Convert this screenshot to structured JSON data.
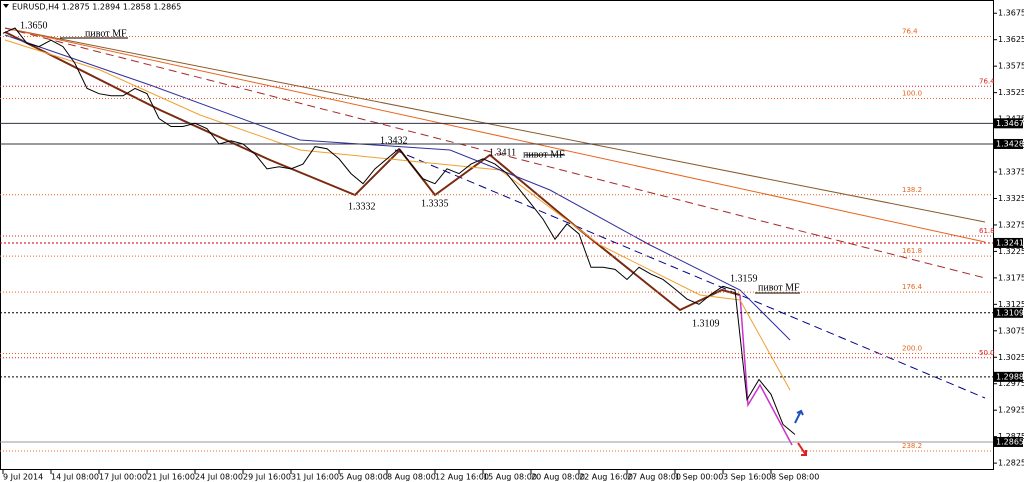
{
  "chart_data": {
    "type": "line",
    "title": "EURUSD,H4  1.2875 1.2894 1.2858 1.2865",
    "color": "#000000",
    "categories": [
      "9 Jul 2014",
      null,
      null,
      null,
      "14 Jul 08:00",
      null,
      null,
      null,
      "17 Jul 00:00",
      null,
      null,
      null,
      "21 Jul 16:00",
      null,
      null,
      null,
      "24 Jul 08:00",
      null,
      null,
      null,
      "29 Jul 16:00",
      null,
      null,
      null,
      "31 Jul 16:00",
      null,
      null,
      null,
      "5 Aug 08:00",
      null,
      null,
      null,
      "8 Aug 08:00",
      null,
      null,
      null,
      "12 Aug 16:00",
      null,
      null,
      null,
      "15 Aug 08:00",
      null,
      null,
      null,
      "20 Aug 08:00",
      null,
      null,
      null,
      "22 Aug 16:00",
      null,
      null,
      null,
      "27 Aug 08:00",
      null,
      null,
      null,
      "1 Sep 00:00",
      null,
      null,
      null,
      "3 Sep 16:00",
      null,
      null,
      null,
      "8 Sep 08:00",
      null,
      null
    ],
    "values": [
      1.3637,
      1.3647,
      1.3618,
      1.3612,
      1.3624,
      1.3612,
      1.358,
      1.3533,
      1.3523,
      1.3519,
      1.3519,
      1.3533,
      1.3523,
      1.3476,
      1.3461,
      1.3461,
      1.3467,
      1.3457,
      1.3428,
      1.3434,
      1.3428,
      1.3409,
      1.3381,
      1.3385,
      1.3381,
      1.339,
      1.3423,
      1.3419,
      1.34,
      1.3372,
      1.3353,
      1.3381,
      1.34,
      1.3419,
      1.339,
      1.3362,
      1.3353,
      1.3381,
      1.3372,
      1.339,
      1.34,
      1.339,
      1.3372,
      1.3343,
      1.3315,
      1.3286,
      1.3248,
      1.3277,
      1.3258,
      1.3195,
      1.3195,
      1.3191,
      1.3172,
      1.3195,
      1.3182,
      1.3172,
      1.3154,
      1.3135,
      1.3125,
      1.3144,
      1.3159,
      1.3152,
      1.2945,
      1.2983,
      1.2955,
      1.2898,
      1.2879
    ],
    "ylim": [
      1.2812,
      1.37
    ],
    "yticks": [
      1.3675,
      1.3625,
      1.3575,
      1.3525,
      1.3475,
      1.3425,
      1.3375,
      1.3325,
      1.3275,
      1.3225,
      1.3175,
      1.3125,
      1.3075,
      1.3025,
      1.2975,
      1.2925,
      1.2875,
      1.2825
    ],
    "price_levels": [
      1.3467,
      1.3428,
      1.3241,
      1.3109,
      1.2988,
      1.2865
    ],
    "fib_levels": [
      {
        "value": 1.3631,
        "label": "76.4"
      },
      {
        "value": 1.3514,
        "label": "100.0"
      },
      {
        "value": 1.3332,
        "label": "138.2"
      },
      {
        "value": 1.3216,
        "label": "161.8"
      },
      {
        "value": 1.3148,
        "label": "176.4"
      },
      {
        "value": 1.3032,
        "label": "200.0"
      },
      {
        "value": 1.2848,
        "label": "238.2"
      }
    ],
    "fib_levels_2": [
      {
        "value": 1.3537,
        "label": "76.4"
      },
      {
        "value": 1.3254,
        "label": "61.8"
      },
      {
        "value": 1.3024,
        "label": "50.0"
      }
    ],
    "annotations": [
      "1.3650",
      "пивот MF",
      "1.3432",
      "1.3332",
      "1.3335",
      "1.3411",
      "пивот MF",
      "1.3159",
      "1.3109",
      "пивот MF"
    ]
  }
}
